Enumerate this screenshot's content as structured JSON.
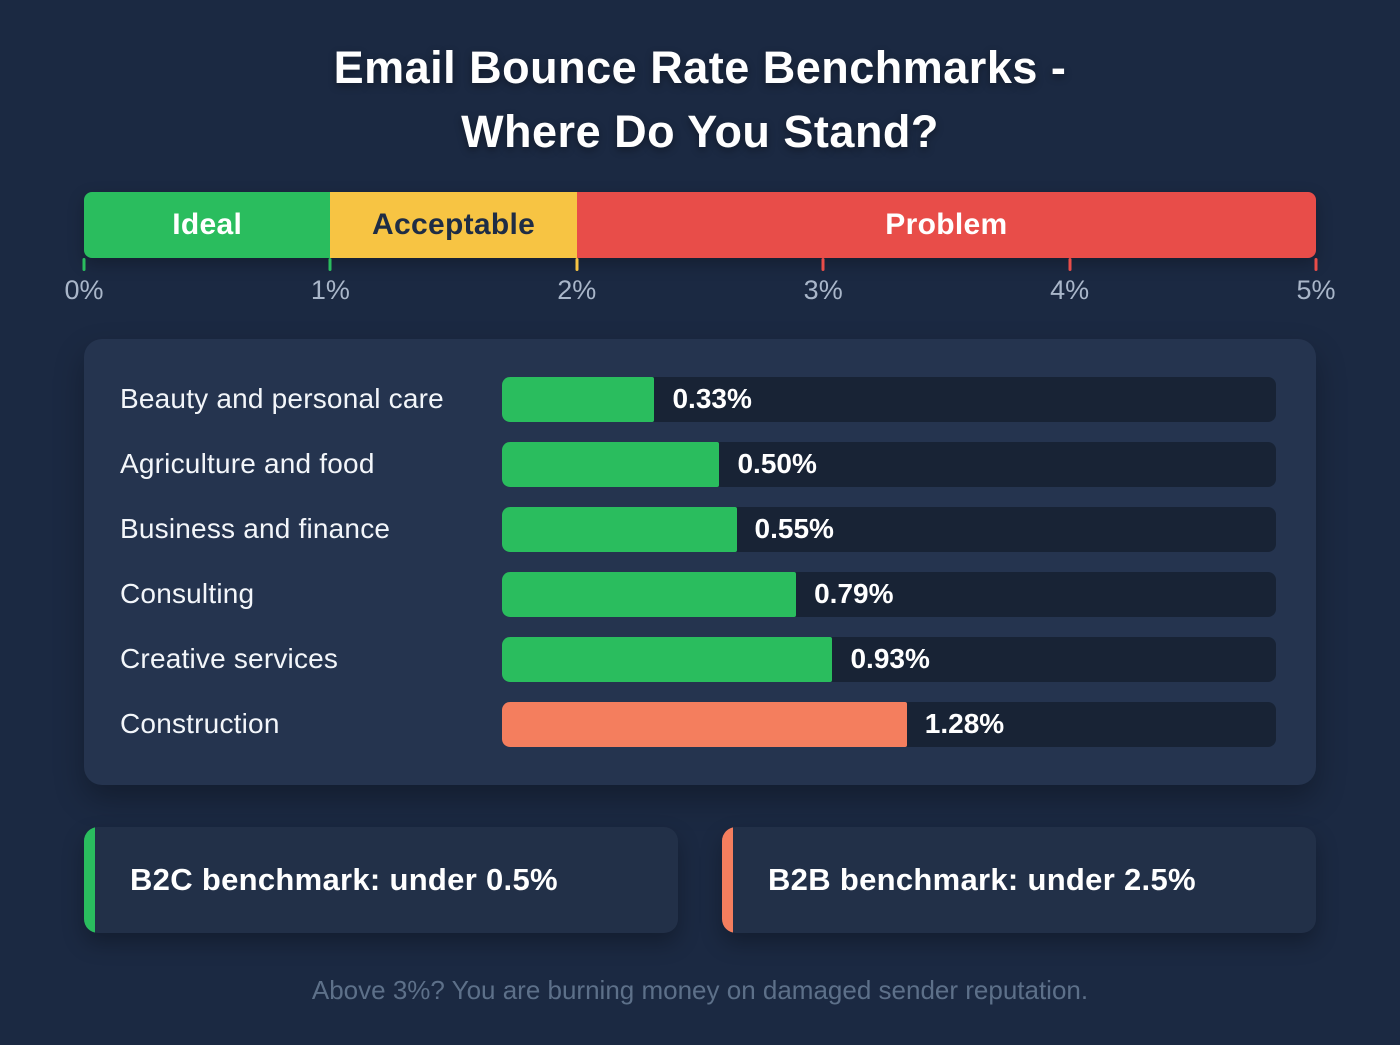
{
  "page": {
    "title_line1": "Email Bounce Rate Benchmarks -",
    "title_line2": "Where Do You Stand?",
    "footer": "Above 3%? You are burning money on damaged sender reputation."
  },
  "colors": {
    "page_bg": "#1b2942",
    "panel_bg": "#25344f",
    "track_bg": "#182335",
    "green": "#2abd5e",
    "yellow": "#f7c443",
    "red": "#e84d49",
    "salmon": "#f47e5e"
  },
  "scale": {
    "min": 0,
    "max": 5,
    "segments": [
      {
        "label": "Ideal",
        "from": 0,
        "to": 1,
        "color": "#2abd5e",
        "text_color": "#ffffff"
      },
      {
        "label": "Acceptable",
        "from": 1,
        "to": 2,
        "color": "#f7c443",
        "text_color": "#1f2d45"
      },
      {
        "label": "Problem",
        "from": 2,
        "to": 5,
        "color": "#e84d49",
        "text_color": "#ffffff"
      }
    ],
    "ticks": [
      "0%",
      "1%",
      "2%",
      "3%",
      "4%",
      "5%"
    ],
    "tick_colors": [
      "#2abd5e",
      "#2abd5e",
      "#f7c443",
      "#e84d49",
      "#e84d49",
      "#e84d49"
    ]
  },
  "chart_data": {
    "type": "bar",
    "orientation": "horizontal",
    "title": "Email Bounce Rate Benchmarks - Where Do You Stand?",
    "categories": [
      "Beauty and personal care",
      "Agriculture and food",
      "Business and finance",
      "Consulting",
      "Creative services",
      "Construction"
    ],
    "values": [
      0.33,
      0.5,
      0.55,
      0.79,
      0.93,
      1.28
    ],
    "value_labels": [
      "0.33%",
      "0.50%",
      "0.55%",
      "0.79%",
      "0.93%",
      "1.28%"
    ],
    "bar_colors": [
      "#2abd5e",
      "#2abd5e",
      "#2abd5e",
      "#2abd5e",
      "#2abd5e",
      "#f47e5e"
    ],
    "bar_width_pct": [
      19.7,
      28.1,
      30.3,
      38.0,
      42.7,
      52.3
    ],
    "xlabel": "",
    "ylabel": "",
    "legend": null,
    "grid": false
  },
  "benchmarks": [
    {
      "label": "B2C benchmark: under 0.5%",
      "accent": "#2abd5e"
    },
    {
      "label": "B2B benchmark: under 2.5%",
      "accent": "#f47e5e"
    }
  ]
}
